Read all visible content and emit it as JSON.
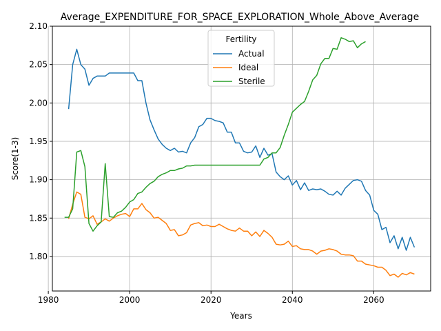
{
  "chart_data": {
    "type": "line",
    "title": "Average_EXPENDITURE_FOR_SPACE_EXPLORATION_Whole_Above_Average",
    "xlabel": "Years",
    "ylabel": "Score(1-3)",
    "xlim": [
      1981,
      2074
    ],
    "ylim": [
      1.755,
      2.1
    ],
    "xticks": [
      1980,
      2000,
      2020,
      2040,
      2060
    ],
    "yticks": [
      1.8,
      1.85,
      1.9,
      1.95,
      2.0,
      2.05,
      2.1
    ],
    "xtick_labels": [
      "1980",
      "2000",
      "2020",
      "2040",
      "2060"
    ],
    "ytick_labels": [
      "1.80",
      "1.85",
      "1.90",
      "1.95",
      "2.00",
      "2.05",
      "2.10"
    ],
    "grid": true,
    "legend": {
      "title": "Fertility",
      "placement": "top-center"
    },
    "series": [
      {
        "name": "Actual",
        "color": "#1f77b4",
        "x": [
          1985,
          1986,
          1987,
          1988,
          1989,
          1990,
          1991,
          1992,
          1993,
          1994,
          1995,
          1996,
          1997,
          1998,
          1999,
          2000,
          2001,
          2002,
          2003,
          2004,
          2005,
          2006,
          2007,
          2008,
          2009,
          2010,
          2011,
          2012,
          2013,
          2014,
          2015,
          2016,
          2017,
          2018,
          2019,
          2020,
          2021,
          2022,
          2023,
          2024,
          2025,
          2026,
          2027,
          2028,
          2029,
          2030,
          2031,
          2032,
          2033,
          2034,
          2035,
          2036,
          2037,
          2038,
          2039,
          2040,
          2041,
          2042,
          2043,
          2044,
          2045,
          2046,
          2047,
          2048,
          2049,
          2050,
          2051,
          2052,
          2053,
          2054,
          2055,
          2056,
          2057,
          2058,
          2059,
          2060,
          2061,
          2062,
          2063,
          2064,
          2065,
          2066,
          2067,
          2068,
          2069,
          2070
        ],
        "values": [
          1.992,
          2.05,
          2.07,
          2.05,
          2.044,
          2.023,
          2.032,
          2.035,
          2.035,
          2.035,
          2.039,
          2.039,
          2.039,
          2.039,
          2.039,
          2.039,
          2.039,
          2.029,
          2.029,
          2.0,
          1.978,
          1.965,
          1.953,
          1.946,
          1.941,
          1.938,
          1.941,
          1.936,
          1.937,
          1.935,
          1.948,
          1.955,
          1.969,
          1.972,
          1.98,
          1.98,
          1.977,
          1.976,
          1.974,
          1.962,
          1.962,
          1.948,
          1.948,
          1.937,
          1.935,
          1.936,
          1.944,
          1.929,
          1.941,
          1.932,
          1.934,
          1.91,
          1.904,
          1.9,
          1.905,
          1.893,
          1.899,
          1.887,
          1.896,
          1.886,
          1.888,
          1.887,
          1.888,
          1.885,
          1.881,
          1.88,
          1.885,
          1.88,
          1.889,
          1.894,
          1.899,
          1.9,
          1.898,
          1.886,
          1.88,
          1.86,
          1.855,
          1.835,
          1.838,
          1.818,
          1.827,
          1.81,
          1.825,
          1.808,
          1.825,
          1.812
        ]
      },
      {
        "name": "Ideal",
        "color": "#ff7f0e",
        "x": [
          1985,
          1986,
          1987,
          1988,
          1989,
          1990,
          1991,
          1992,
          1993,
          1994,
          1995,
          1996,
          1997,
          1998,
          1999,
          2000,
          2001,
          2002,
          2003,
          2004,
          2005,
          2006,
          2007,
          2008,
          2009,
          2010,
          2011,
          2012,
          2013,
          2014,
          2015,
          2016,
          2017,
          2018,
          2019,
          2020,
          2021,
          2022,
          2023,
          2024,
          2025,
          2026,
          2027,
          2028,
          2029,
          2030,
          2031,
          2032,
          2033,
          2034,
          2035,
          2036,
          2037,
          2038,
          2039,
          2040,
          2041,
          2042,
          2043,
          2044,
          2045,
          2046,
          2047,
          2048,
          2049,
          2050,
          2051,
          2052,
          2053,
          2054,
          2055,
          2056,
          2057,
          2058,
          2059,
          2060,
          2061,
          2062,
          2063,
          2064,
          2065,
          2066,
          2067,
          2068,
          2069,
          2070
        ],
        "values": [
          1.849,
          1.868,
          1.884,
          1.881,
          1.851,
          1.849,
          1.853,
          1.842,
          1.845,
          1.849,
          1.846,
          1.85,
          1.853,
          1.855,
          1.856,
          1.852,
          1.862,
          1.862,
          1.869,
          1.861,
          1.857,
          1.85,
          1.851,
          1.847,
          1.843,
          1.834,
          1.835,
          1.827,
          1.828,
          1.831,
          1.841,
          1.843,
          1.844,
          1.84,
          1.841,
          1.839,
          1.839,
          1.842,
          1.839,
          1.836,
          1.834,
          1.833,
          1.837,
          1.833,
          1.833,
          1.827,
          1.832,
          1.826,
          1.834,
          1.83,
          1.825,
          1.816,
          1.815,
          1.816,
          1.82,
          1.813,
          1.814,
          1.81,
          1.809,
          1.809,
          1.807,
          1.803,
          1.807,
          1.808,
          1.81,
          1.809,
          1.807,
          1.803,
          1.802,
          1.802,
          1.801,
          1.794,
          1.794,
          1.79,
          1.789,
          1.788,
          1.786,
          1.786,
          1.782,
          1.775,
          1.777,
          1.773,
          1.778,
          1.776,
          1.779,
          1.777
        ]
      },
      {
        "name": "Sterile",
        "color": "#2ca02c",
        "x": [
          1984,
          1985,
          1986,
          1987,
          1988,
          1989,
          1990,
          1991,
          1992,
          1993,
          1994,
          1995,
          1996,
          1997,
          1998,
          1999,
          2000,
          2001,
          2002,
          2003,
          2004,
          2005,
          2006,
          2007,
          2008,
          2009,
          2010,
          2011,
          2012,
          2013,
          2014,
          2015,
          2016,
          2017,
          2018,
          2019,
          2020,
          2021,
          2022,
          2023,
          2024,
          2025,
          2026,
          2027,
          2028,
          2029,
          2030,
          2031,
          2032,
          2033,
          2034,
          2035,
          2036,
          2037,
          2038,
          2039,
          2040,
          2041,
          2042,
          2043,
          2044,
          2045,
          2046,
          2047,
          2048,
          2049,
          2050,
          2051,
          2052,
          2053,
          2054,
          2055,
          2056,
          2057,
          2058
        ],
        "values": [
          1.851,
          1.851,
          1.862,
          1.936,
          1.938,
          1.917,
          1.843,
          1.833,
          1.84,
          1.845,
          1.921,
          1.852,
          1.851,
          1.857,
          1.859,
          1.864,
          1.871,
          1.874,
          1.882,
          1.884,
          1.89,
          1.895,
          1.898,
          1.904,
          1.907,
          1.909,
          1.912,
          1.912,
          1.914,
          1.915,
          1.918,
          1.918,
          1.919,
          1.919,
          1.919,
          1.919,
          1.919,
          1.919,
          1.919,
          1.919,
          1.919,
          1.919,
          1.919,
          1.919,
          1.919,
          1.919,
          1.919,
          1.919,
          1.919,
          1.927,
          1.929,
          1.935,
          1.935,
          1.942,
          1.958,
          1.972,
          1.988,
          1.993,
          1.998,
          2.002,
          2.015,
          2.03,
          2.036,
          2.051,
          2.058,
          2.058,
          2.071,
          2.07,
          2.085,
          2.083,
          2.08,
          2.081,
          2.072,
          2.077,
          2.08
        ]
      }
    ]
  }
}
